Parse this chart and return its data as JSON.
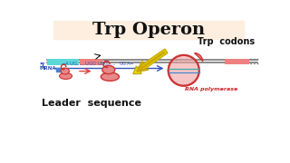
{
  "title": "Trp Operon",
  "title_bg": "#fdeee0",
  "title_color": "#111111",
  "label_trp_codons": "Trp  codons",
  "label_leader": "Leader  sequence",
  "label_rna_pol": "RNA polymerase",
  "bg_color": "#ffffff",
  "cyan_box": "#5dd8d8",
  "pink_box": "#f08080",
  "ribosome_fill": "#e88888",
  "ribosome_edge": "#cc3333",
  "rna_pol_fill": "#f0a0a0",
  "rna_pol_edge": "#cc3333",
  "arrow_yellow": "#f0e000",
  "arrow_yellow_edge": "#c8a800",
  "blue_text": "#3355bb",
  "red_text": "#cc2222",
  "dna_color": "#777777",
  "strand_teal": "#55aaaa"
}
